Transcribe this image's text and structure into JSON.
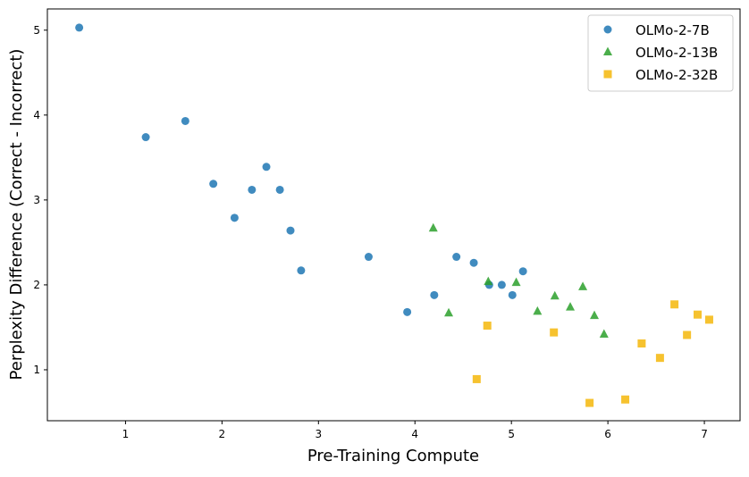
{
  "chart_data": {
    "type": "scatter",
    "xlabel": "Pre-Training Compute",
    "ylabel": "Perplexity Difference (Correct - Incorrect)",
    "xlim": [
      0.19,
      7.37
    ],
    "ylim": [
      0.4,
      5.25
    ],
    "xticks": [
      1,
      2,
      3,
      4,
      5,
      6,
      7
    ],
    "yticks": [
      1,
      2,
      3,
      4,
      5
    ],
    "grid": false,
    "legend_position": "top-right",
    "series": [
      {
        "name": "OLMo-2-7B",
        "marker": "circle",
        "color": "#1f77b4",
        "points": [
          [
            0.52,
            5.03
          ],
          [
            1.21,
            3.74
          ],
          [
            1.62,
            3.93
          ],
          [
            1.91,
            3.19
          ],
          [
            2.13,
            2.79
          ],
          [
            2.31,
            3.12
          ],
          [
            2.46,
            3.39
          ],
          [
            2.6,
            3.12
          ],
          [
            2.71,
            2.64
          ],
          [
            2.82,
            2.17
          ],
          [
            3.52,
            2.33
          ],
          [
            3.92,
            1.68
          ],
          [
            4.2,
            1.88
          ],
          [
            4.43,
            2.33
          ],
          [
            4.61,
            2.26
          ],
          [
            4.77,
            2.0
          ],
          [
            4.9,
            2.0
          ],
          [
            5.01,
            1.88
          ],
          [
            5.12,
            2.16
          ]
        ]
      },
      {
        "name": "OLMo-2-13B",
        "marker": "triangle",
        "color": "#2ca02c",
        "points": [
          [
            4.19,
            2.67
          ],
          [
            4.35,
            1.67
          ],
          [
            4.76,
            2.04
          ],
          [
            5.05,
            2.03
          ],
          [
            5.27,
            1.69
          ],
          [
            5.45,
            1.87
          ],
          [
            5.61,
            1.74
          ],
          [
            5.74,
            1.98
          ],
          [
            5.86,
            1.64
          ],
          [
            5.96,
            1.42
          ]
        ]
      },
      {
        "name": "OLMo-2-32B",
        "marker": "square",
        "color": "#f5b70a",
        "points": [
          [
            4.75,
            1.52
          ],
          [
            4.64,
            0.89
          ],
          [
            5.44,
            1.44
          ],
          [
            5.81,
            0.61
          ],
          [
            6.18,
            0.65
          ],
          [
            6.35,
            1.31
          ],
          [
            6.54,
            1.14
          ],
          [
            6.69,
            1.77
          ],
          [
            6.82,
            1.41
          ],
          [
            6.93,
            1.65
          ],
          [
            7.05,
            1.59
          ]
        ]
      }
    ]
  }
}
